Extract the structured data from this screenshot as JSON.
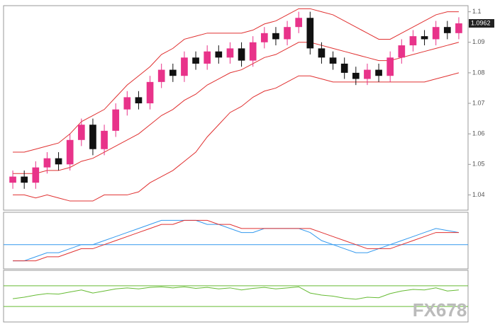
{
  "chart_data": [
    {
      "type": "candlestick",
      "open": [
        1.044,
        1.046,
        1.044,
        1.049,
        1.052,
        1.05,
        1.058,
        1.063,
        1.055,
        1.061,
        1.068,
        1.072,
        1.07,
        1.077,
        1.081,
        1.079,
        1.085,
        1.083,
        1.087,
        1.085,
        1.088,
        1.084,
        1.09,
        1.093,
        1.091,
        1.095,
        1.098,
        1.088,
        1.085,
        1.083,
        1.08,
        1.078,
        1.081,
        1.079,
        1.085,
        1.089,
        1.092,
        1.091,
        1.095,
        1.093
      ],
      "high": [
        1.048,
        1.048,
        1.051,
        1.054,
        1.054,
        1.06,
        1.065,
        1.065,
        1.063,
        1.07,
        1.074,
        1.074,
        1.079,
        1.083,
        1.083,
        1.087,
        1.087,
        1.089,
        1.089,
        1.09,
        1.09,
        1.092,
        1.095,
        1.095,
        1.097,
        1.1,
        1.1,
        1.09,
        1.087,
        1.085,
        1.082,
        1.083,
        1.083,
        1.087,
        1.091,
        1.094,
        1.094,
        1.097,
        1.097,
        1.0982
      ],
      "low": [
        1.042,
        1.042,
        1.042,
        1.047,
        1.048,
        1.048,
        1.056,
        1.053,
        1.053,
        1.059,
        1.066,
        1.068,
        1.068,
        1.075,
        1.077,
        1.077,
        1.081,
        1.081,
        1.083,
        1.083,
        1.082,
        1.082,
        1.088,
        1.089,
        1.089,
        1.093,
        1.086,
        1.083,
        1.081,
        1.078,
        1.076,
        1.076,
        1.077,
        1.077,
        1.083,
        1.087,
        1.089,
        1.089,
        1.091,
        1.091
      ],
      "close": [
        1.046,
        1.044,
        1.049,
        1.052,
        1.05,
        1.058,
        1.063,
        1.055,
        1.061,
        1.068,
        1.072,
        1.07,
        1.077,
        1.081,
        1.079,
        1.085,
        1.083,
        1.087,
        1.085,
        1.088,
        1.084,
        1.09,
        1.093,
        1.091,
        1.095,
        1.098,
        1.088,
        1.085,
        1.083,
        1.08,
        1.078,
        1.081,
        1.079,
        1.085,
        1.089,
        1.092,
        1.091,
        1.095,
        1.093,
        1.0962
      ],
      "up_color": "#e8338a",
      "down_color": "#111111",
      "series": [
        {
          "color": "#e03030",
          "values": [
            1.054,
            1.054,
            1.055,
            1.056,
            1.057,
            1.06,
            1.064,
            1.066,
            1.068,
            1.072,
            1.076,
            1.079,
            1.082,
            1.086,
            1.088,
            1.091,
            1.092,
            1.093,
            1.093,
            1.093,
            1.093,
            1.094,
            1.096,
            1.097,
            1.099,
            1.101,
            1.101,
            1.1,
            1.099,
            1.097,
            1.095,
            1.093,
            1.091,
            1.091,
            1.093,
            1.095,
            1.097,
            1.099,
            1.1,
            1.1
          ]
        },
        {
          "color": "#e03030",
          "values": [
            1.047,
            1.047,
            1.047,
            1.048,
            1.048,
            1.049,
            1.051,
            1.052,
            1.054,
            1.056,
            1.058,
            1.06,
            1.063,
            1.066,
            1.068,
            1.071,
            1.073,
            1.076,
            1.078,
            1.08,
            1.081,
            1.083,
            1.085,
            1.086,
            1.088,
            1.09,
            1.09,
            1.089,
            1.088,
            1.087,
            1.086,
            1.085,
            1.084,
            1.084,
            1.085,
            1.086,
            1.087,
            1.088,
            1.089,
            1.09
          ]
        },
        {
          "color": "#e03030",
          "values": [
            1.04,
            1.04,
            1.039,
            1.04,
            1.039,
            1.038,
            1.038,
            1.038,
            1.04,
            1.04,
            1.04,
            1.041,
            1.044,
            1.046,
            1.048,
            1.051,
            1.054,
            1.059,
            1.063,
            1.067,
            1.069,
            1.072,
            1.074,
            1.075,
            1.077,
            1.079,
            1.079,
            1.078,
            1.077,
            1.077,
            1.077,
            1.077,
            1.077,
            1.077,
            1.077,
            1.077,
            1.077,
            1.078,
            1.079,
            1.08
          ]
        }
      ],
      "ylim": [
        1.035,
        1.102
      ],
      "yticks": [
        1.04,
        1.05,
        1.06,
        1.07,
        1.08,
        1.09,
        1.1
      ]
    },
    {
      "type": "line",
      "series": [
        {
          "color": "#3399ee",
          "values": [
            -0.004,
            -0.004,
            -0.003,
            -0.002,
            -0.002,
            -0.001,
            0,
            0,
            0.001,
            0.002,
            0.003,
            0.004,
            0.005,
            0.006,
            0.006,
            0.006,
            0.006,
            0.005,
            0.005,
            0.004,
            0.003,
            0.003,
            0.004,
            0.004,
            0.004,
            0.004,
            0.003,
            0.001,
            0,
            -0.001,
            -0.002,
            -0.002,
            -0.001,
            0,
            0.001,
            0.002,
            0.003,
            0.004,
            0.0035,
            0.003
          ]
        },
        {
          "color": "#e03030",
          "values": [
            -0.004,
            -0.004,
            -0.004,
            -0.003,
            -0.003,
            -0.002,
            -0.001,
            -0.001,
            0,
            0.001,
            0.002,
            0.003,
            0.004,
            0.005,
            0.005,
            0.006,
            0.006,
            0.006,
            0.005,
            0.005,
            0.004,
            0.004,
            0.004,
            0.004,
            0.004,
            0.004,
            0.004,
            0.003,
            0.002,
            0.001,
            0,
            -0.001,
            -0.001,
            -0.001,
            0,
            0.001,
            0.002,
            0.003,
            0.003,
            0.003
          ]
        }
      ],
      "hlines": [
        0
      ],
      "hline_color": "#3399ee",
      "ylim": [
        -0.006,
        0.008
      ]
    },
    {
      "type": "line",
      "series": [
        {
          "color": "#66bb33",
          "values": [
            45,
            48,
            52,
            55,
            54,
            58,
            62,
            56,
            60,
            64,
            66,
            64,
            67,
            68,
            66,
            68,
            65,
            67,
            64,
            66,
            62,
            65,
            67,
            64,
            66,
            68,
            56,
            52,
            50,
            46,
            44,
            48,
            47,
            55,
            60,
            63,
            62,
            66,
            60,
            62
          ]
        }
      ],
      "hlines": [
        70,
        30
      ],
      "hline_color": "#66bb33",
      "ylim": [
        0,
        100
      ]
    }
  ],
  "watermark": "FX678"
}
